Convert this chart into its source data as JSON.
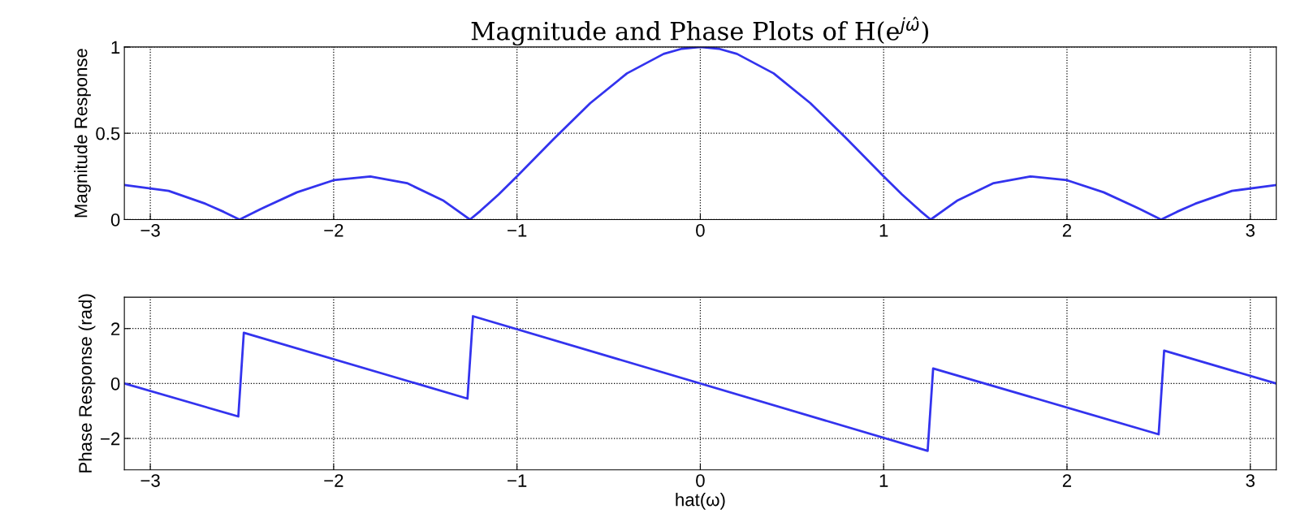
{
  "chart_data": [
    {
      "type": "line",
      "title": "Magnitude and Phase Plots of H(e$^{jω̂}$)",
      "ylabel": "Magnitude Response",
      "xlim": [
        -3.1416,
        3.1416
      ],
      "xticks": [
        -3,
        -2,
        -1,
        0,
        1,
        2,
        3
      ],
      "ylim": [
        0,
        1
      ],
      "yticks": [
        0,
        0.5,
        1
      ],
      "grid": true,
      "series": [
        {
          "color": "#3333ee",
          "x": [
            -3.1416,
            -2.9,
            -2.7,
            -2.6,
            -2.5133,
            -2.4,
            -2.2,
            -2.0,
            -1.8,
            -1.6,
            -1.4,
            -1.2566,
            -1.2,
            -1.1,
            -1.0,
            -0.8,
            -0.6,
            -0.4,
            -0.2,
            -0.1,
            0,
            0.1,
            0.2,
            0.4,
            0.6,
            0.8,
            1.0,
            1.1,
            1.2,
            1.2566,
            1.4,
            1.6,
            1.8,
            2.0,
            2.2,
            2.4,
            2.5133,
            2.6,
            2.7,
            2.9,
            3.1416
          ],
          "values": [
            0.2,
            0.166,
            0.092,
            0.045,
            0,
            0.06,
            0.158,
            0.228,
            0.25,
            0.211,
            0.109,
            0,
            0.05,
            0.146,
            0.25,
            0.467,
            0.675,
            0.847,
            0.96,
            0.99,
            1,
            0.99,
            0.96,
            0.847,
            0.675,
            0.467,
            0.25,
            0.146,
            0.05,
            0,
            0.109,
            0.211,
            0.25,
            0.228,
            0.158,
            0.06,
            0,
            0.045,
            0.092,
            0.166,
            0.2
          ]
        }
      ]
    },
    {
      "type": "line",
      "xlabel": "hat(ω)",
      "ylabel": "Phase Response (rad)",
      "xlim": [
        -3.1416,
        3.1416
      ],
      "xticks": [
        -3,
        -2,
        -1,
        0,
        1,
        2,
        3
      ],
      "ylim": [
        -3.1416,
        3.1416
      ],
      "yticks": [
        {
          "value": -2,
          "label": "−2"
        },
        0,
        2
      ],
      "grid": true,
      "series": [
        {
          "color": "#3333ee",
          "x": [
            -3.1416,
            -2.52,
            -2.49,
            -1.27,
            -1.24,
            1.24,
            1.27,
            2.5,
            2.53,
            3.1416
          ],
          "values": [
            0,
            -1.2,
            1.85,
            -0.55,
            2.45,
            -2.45,
            0.55,
            -1.85,
            1.2,
            0.0
          ]
        }
      ]
    }
  ]
}
